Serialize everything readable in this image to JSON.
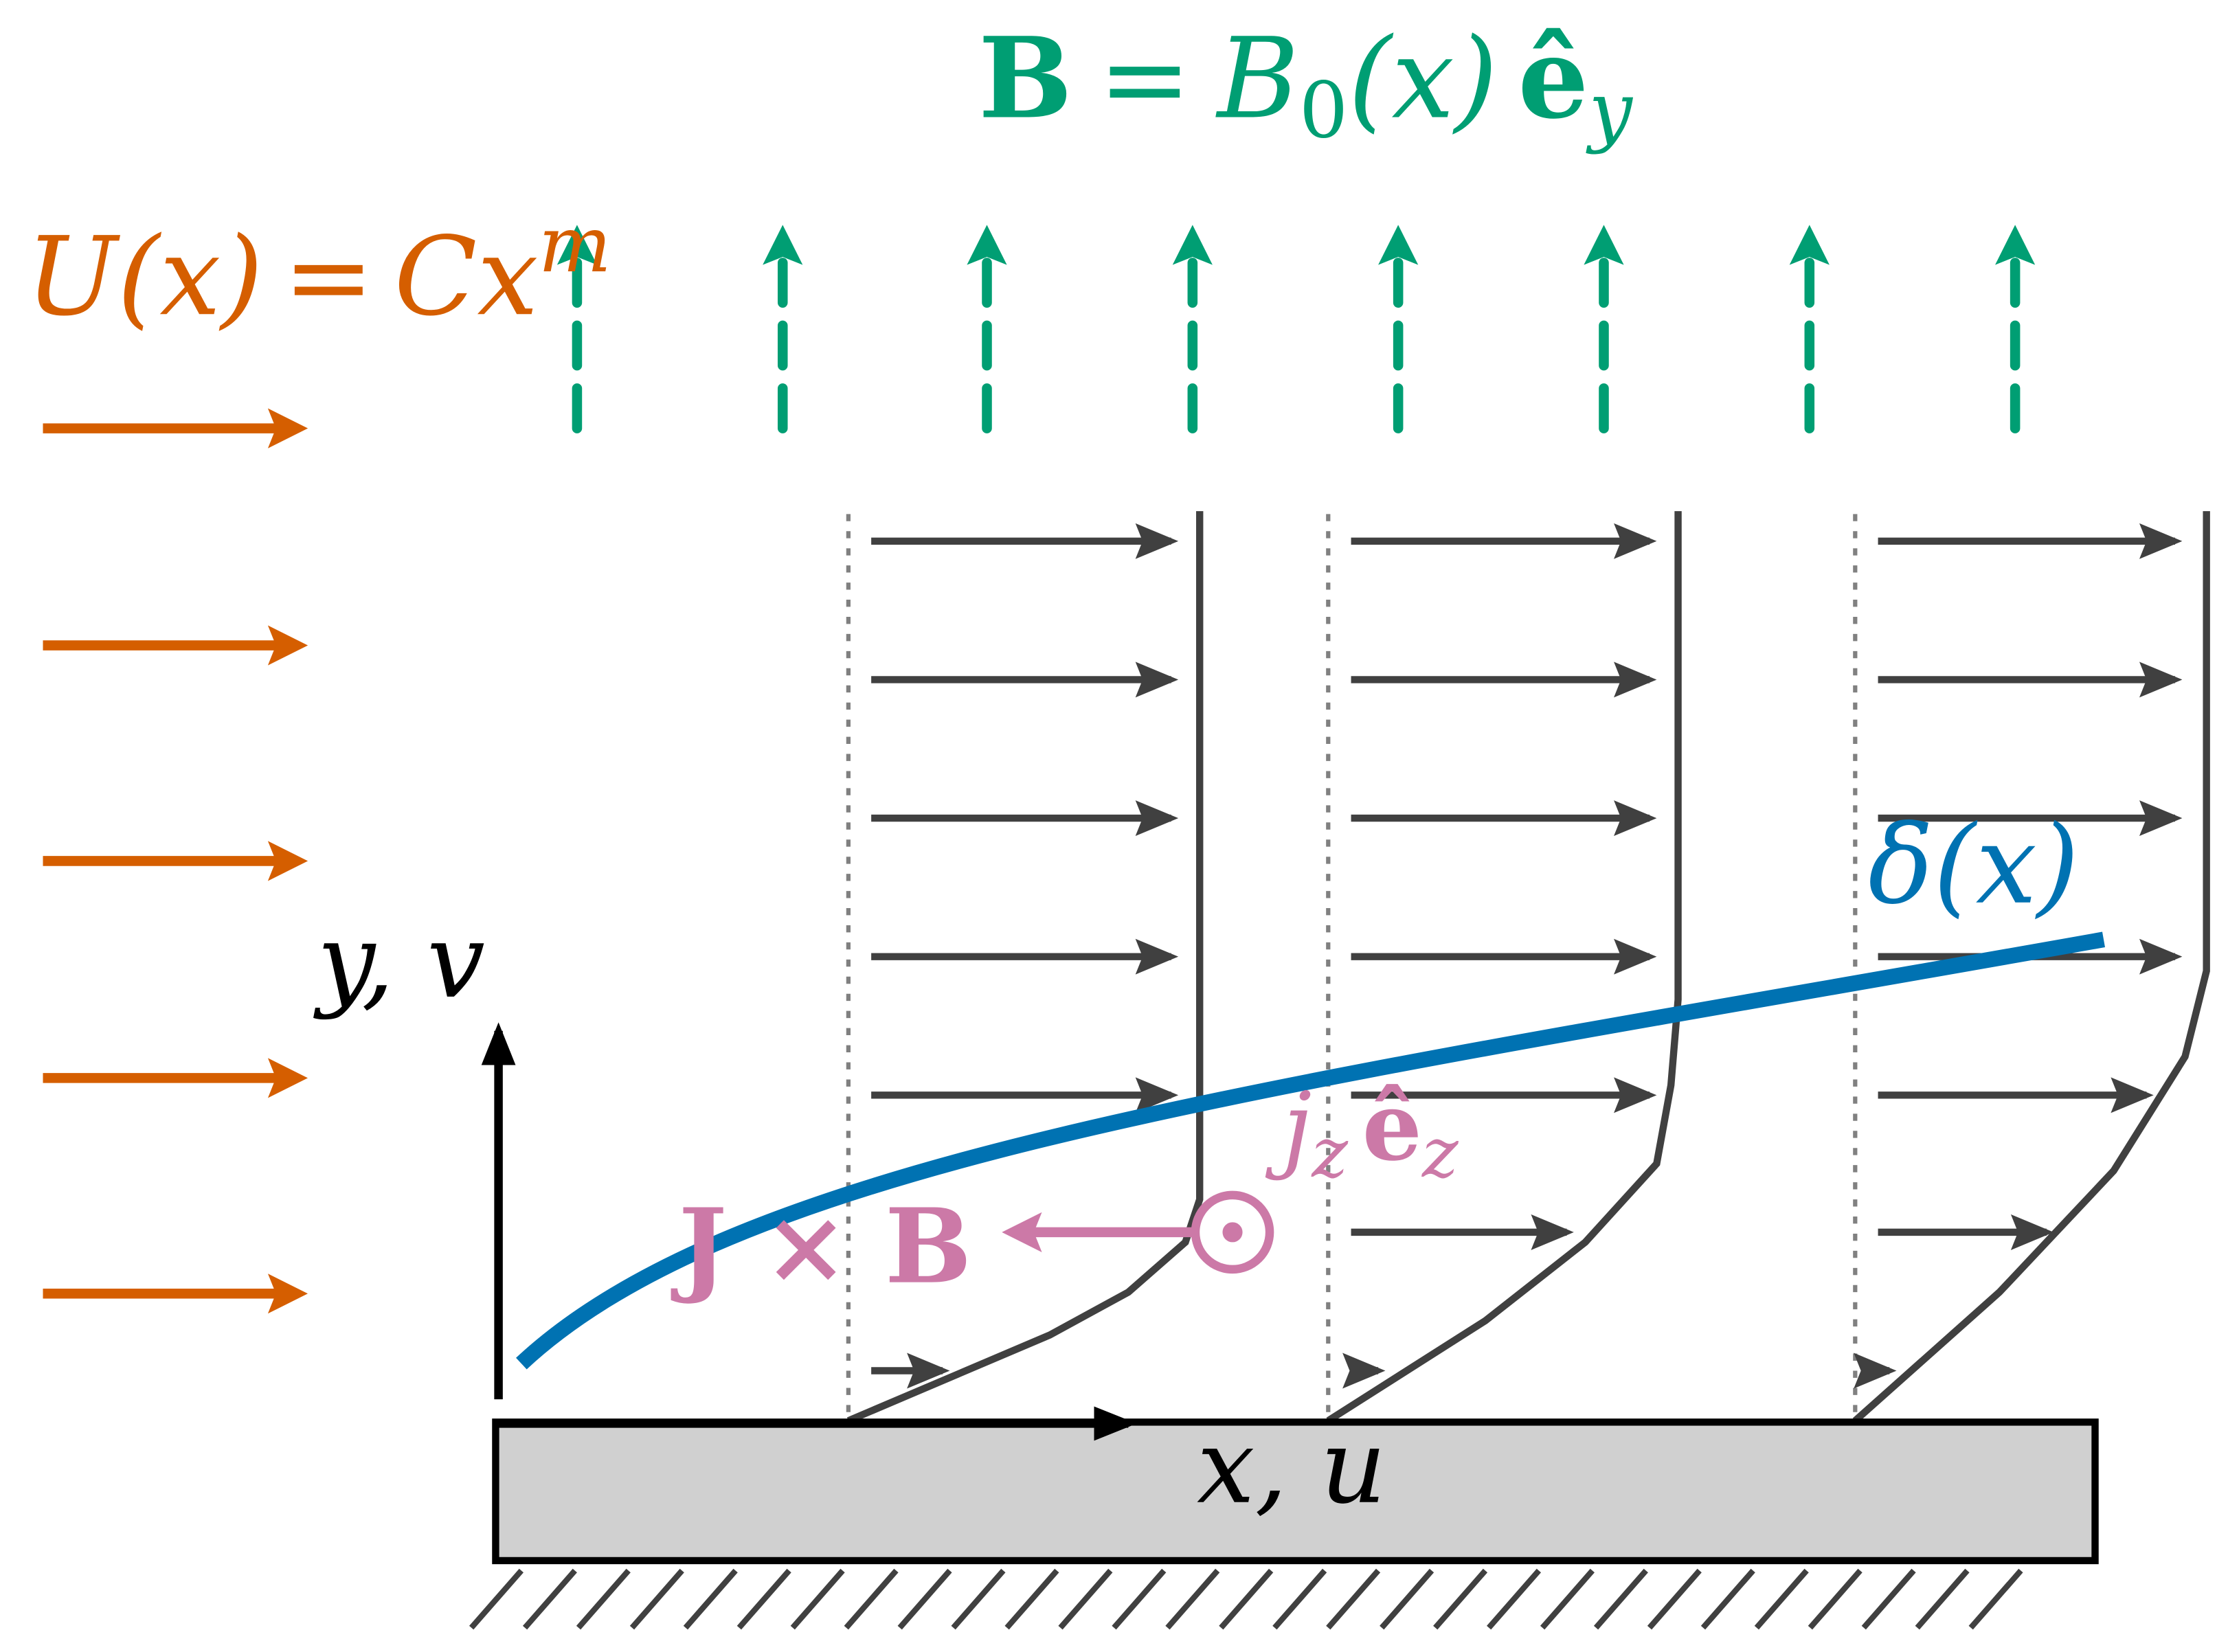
{
  "labels": {
    "magnetic_field": [
      "B",
      "=",
      "B",
      "0",
      "(x)",
      "ê",
      "y"
    ],
    "freestream": [
      "U(x)",
      "=",
      "Cx",
      "m"
    ],
    "y_axis": "y, v",
    "x_axis": "x, u",
    "boundary_layer": "δ(x)",
    "current": [
      "j",
      "z",
      "ê",
      "z"
    ],
    "lorentz_force": "J × B"
  }
}
